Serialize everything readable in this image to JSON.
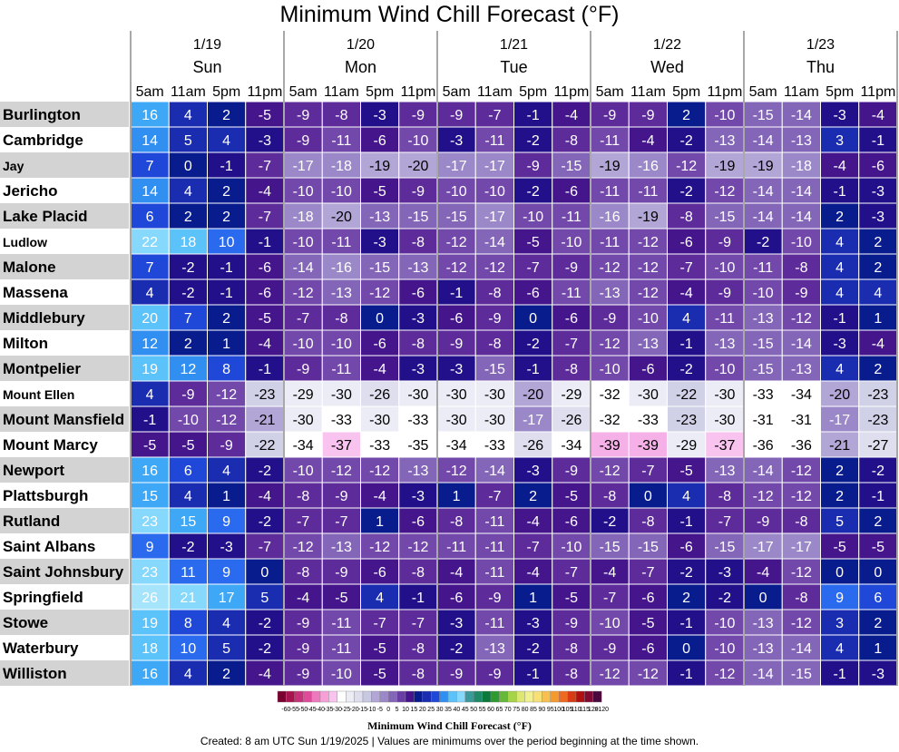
{
  "chart_data": {
    "type": "heatmap",
    "title": "Minimum Wind Chill Forecast (°F)",
    "days": [
      {
        "date": "1/19",
        "day": "Sun"
      },
      {
        "date": "1/20",
        "day": "Mon"
      },
      {
        "date": "1/21",
        "day": "Tue"
      },
      {
        "date": "1/22",
        "day": "Wed"
      },
      {
        "date": "1/23",
        "day": "Thu"
      }
    ],
    "times": [
      "5am",
      "11am",
      "5pm",
      "11pm"
    ],
    "locations": [
      "Burlington",
      "Cambridge",
      "Jay",
      "Jericho",
      "Lake Placid",
      "Ludlow",
      "Malone",
      "Massena",
      "Middlebury",
      "Milton",
      "Montpelier",
      "Mount Ellen",
      "Mount Mansfield",
      "Mount Marcy",
      "Newport",
      "Plattsburgh",
      "Rutland",
      "Saint Albans",
      "Saint Johnsbury",
      "Springfield",
      "Stowe",
      "Waterbury",
      "Williston"
    ],
    "values": [
      [
        16,
        4,
        2,
        -5,
        -9,
        -8,
        -3,
        -9,
        -9,
        -7,
        -1,
        -4,
        -9,
        -9,
        2,
        -10,
        -15,
        -14,
        -3,
        -4
      ],
      [
        14,
        5,
        4,
        -3,
        -9,
        -11,
        -6,
        -10,
        -3,
        -11,
        -2,
        -8,
        -11,
        -4,
        -2,
        -13,
        -14,
        -13,
        3,
        -1
      ],
      [
        7,
        0,
        -1,
        -7,
        -17,
        -18,
        -19,
        -20,
        -17,
        -17,
        -9,
        -15,
        -19,
        -16,
        -12,
        -19,
        -19,
        -18,
        -4,
        -6
      ],
      [
        14,
        4,
        2,
        -4,
        -10,
        -10,
        -5,
        -9,
        -10,
        -10,
        -2,
        -6,
        -11,
        -11,
        -2,
        -12,
        -14,
        -14,
        -1,
        -3
      ],
      [
        6,
        2,
        2,
        -7,
        -18,
        -20,
        -13,
        -15,
        -15,
        -17,
        -10,
        -11,
        -16,
        -19,
        -8,
        -15,
        -14,
        -14,
        2,
        -3
      ],
      [
        22,
        18,
        10,
        -1,
        -10,
        -11,
        -3,
        -8,
        -12,
        -14,
        -5,
        -10,
        -11,
        -12,
        -6,
        -9,
        -2,
        -10,
        4,
        2
      ],
      [
        7,
        -2,
        -1,
        -6,
        -14,
        -16,
        -15,
        -13,
        -12,
        -12,
        -7,
        -9,
        -12,
        -12,
        -7,
        -10,
        -11,
        -8,
        4,
        2
      ],
      [
        4,
        -2,
        -1,
        -6,
        -12,
        -13,
        -12,
        -6,
        -1,
        -8,
        -6,
        -11,
        -13,
        -12,
        -4,
        -9,
        -10,
        -9,
        4,
        4
      ],
      [
        20,
        7,
        2,
        -5,
        -7,
        -8,
        0,
        -3,
        -6,
        -9,
        0,
        -6,
        -9,
        -10,
        4,
        -11,
        -13,
        -12,
        -1,
        1
      ],
      [
        12,
        2,
        1,
        -4,
        -10,
        -10,
        -6,
        -8,
        -9,
        -8,
        -2,
        -7,
        -12,
        -13,
        -1,
        -13,
        -15,
        -14,
        -3,
        -4
      ],
      [
        19,
        12,
        8,
        -1,
        -9,
        -11,
        -4,
        -3,
        -3,
        -15,
        -1,
        -8,
        -10,
        -6,
        -2,
        -10,
        -15,
        -13,
        4,
        2
      ],
      [
        4,
        -9,
        -12,
        -23,
        -29,
        -30,
        -26,
        -30,
        -30,
        -30,
        -20,
        -29,
        -32,
        -30,
        -22,
        -30,
        -33,
        -34,
        -20,
        -23
      ],
      [
        -1,
        -10,
        -12,
        -21,
        -30,
        -33,
        -30,
        -33,
        -30,
        -30,
        -17,
        -26,
        -32,
        -33,
        -23,
        -30,
        -31,
        -31,
        -17,
        -23
      ],
      [
        -5,
        -5,
        -9,
        -22,
        -34,
        -37,
        -33,
        -35,
        -34,
        -33,
        -26,
        -34,
        -39,
        -39,
        -29,
        -37,
        -36,
        -36,
        -21,
        -27
      ],
      [
        16,
        6,
        4,
        -2,
        -10,
        -12,
        -12,
        -13,
        -12,
        -14,
        -3,
        -9,
        -12,
        -7,
        -5,
        -13,
        -14,
        -12,
        2,
        -2
      ],
      [
        15,
        4,
        1,
        -4,
        -8,
        -9,
        -4,
        -3,
        1,
        -7,
        2,
        -5,
        -8,
        0,
        4,
        -8,
        -12,
        -12,
        2,
        -1
      ],
      [
        23,
        15,
        9,
        -2,
        -7,
        -7,
        1,
        -6,
        -8,
        -11,
        -4,
        -6,
        -2,
        -8,
        -1,
        -7,
        -9,
        -8,
        5,
        2
      ],
      [
        9,
        -2,
        -3,
        -7,
        -12,
        -13,
        -12,
        -12,
        -11,
        -11,
        -7,
        -10,
        -15,
        -15,
        -6,
        -15,
        -17,
        -17,
        -5,
        -5
      ],
      [
        23,
        11,
        9,
        0,
        -8,
        -9,
        -6,
        -8,
        -4,
        -11,
        -4,
        -7,
        -4,
        -7,
        -2,
        -3,
        -4,
        -12,
        0,
        0
      ],
      [
        26,
        21,
        17,
        5,
        -4,
        -5,
        4,
        -1,
        -6,
        -9,
        1,
        -5,
        -7,
        -6,
        2,
        -2,
        0,
        -8,
        9,
        6
      ],
      [
        19,
        8,
        4,
        -2,
        -9,
        -11,
        -7,
        -7,
        -3,
        -11,
        -3,
        -9,
        -10,
        -5,
        -1,
        -10,
        -13,
        -12,
        3,
        2
      ],
      [
        18,
        10,
        5,
        -2,
        -9,
        -11,
        -5,
        -8,
        -2,
        -13,
        -2,
        -8,
        -9,
        -6,
        0,
        -10,
        -13,
        -14,
        4,
        1
      ],
      [
        16,
        4,
        2,
        -4,
        -9,
        -10,
        -5,
        -8,
        -9,
        -9,
        -1,
        -8,
        -12,
        -12,
        -1,
        -12,
        -14,
        -15,
        -1,
        -3
      ]
    ],
    "legend": {
      "label": "Minimum Wind Chill Forecast (°F)",
      "ticks": [
        "-60",
        "-55",
        "-50",
        "-45",
        "-40",
        "-35",
        "-30",
        "-25",
        "-20",
        "-15",
        "-10",
        "-5",
        "0",
        "5",
        "10",
        "15",
        "20",
        "25",
        "30",
        "35",
        "40",
        "45",
        "50",
        "55",
        "60",
        "65",
        "70",
        "75",
        "80",
        "85",
        "90",
        "95",
        "100",
        "105",
        "110",
        "115",
        "120",
        ">120"
      ]
    }
  },
  "footer": "Created: 8 am UTC Sun 1/19/2025  |  Values are minimums over the period beginning at the time shown."
}
